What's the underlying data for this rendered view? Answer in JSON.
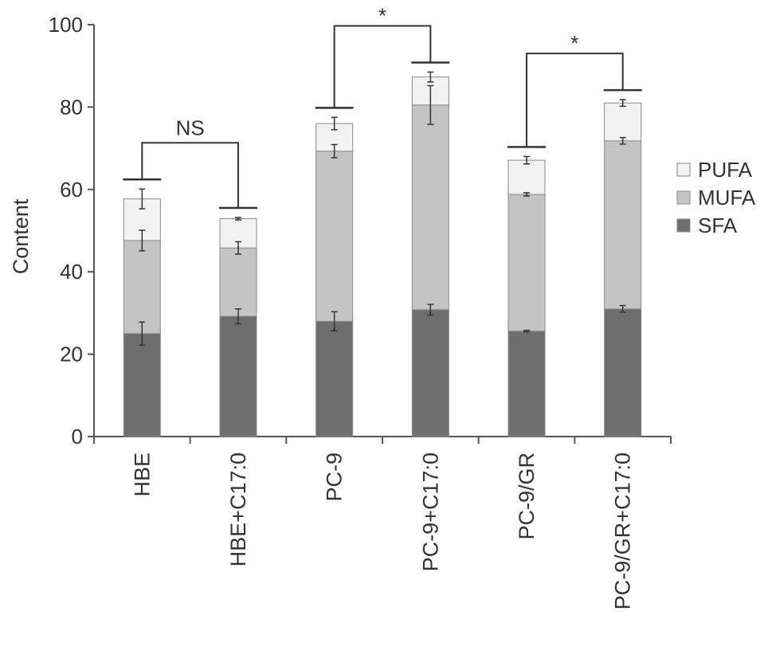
{
  "chart_data": {
    "type": "bar",
    "stacked": true,
    "ylabel": "Content",
    "ylim": [
      0,
      100
    ],
    "yticks": [
      0,
      20,
      40,
      60,
      80,
      100
    ],
    "categories": [
      "HBE",
      "HBE+C17:0",
      "PC-9",
      "PC-9+C17:0",
      "PC-9/GR",
      "PC-9/GR+C17:0"
    ],
    "series": [
      {
        "name": "SFA",
        "color": "#6e6e6e",
        "values": [
          25,
          29.2,
          28,
          30.8,
          25.6,
          31
        ],
        "errors": [
          2.8,
          1.8,
          2.3,
          1.3,
          0.2,
          0.8
        ]
      },
      {
        "name": "MUFA",
        "color": "#c4c4c4",
        "values": [
          22.6,
          16.6,
          41.3,
          49.7,
          33.2,
          40.8
        ],
        "errors": [
          2.5,
          1.5,
          1.6,
          4.7,
          0.4,
          0.8
        ]
      },
      {
        "name": "PUFA",
        "color": "#f2f2f2",
        "values": [
          10.1,
          7.1,
          6.7,
          6.8,
          8.3,
          9.2
        ],
        "errors": [
          2.4,
          0.3,
          1.5,
          1.2,
          0.9,
          0.8
        ]
      }
    ],
    "legend": {
      "position": "right",
      "order": [
        "PUFA",
        "MUFA",
        "SFA"
      ]
    },
    "comparisons": [
      {
        "pair": [
          0,
          1
        ],
        "label": "NS"
      },
      {
        "pair": [
          2,
          3
        ],
        "label": "*"
      },
      {
        "pair": [
          4,
          5
        ],
        "label": "*"
      }
    ],
    "grid": false
  }
}
